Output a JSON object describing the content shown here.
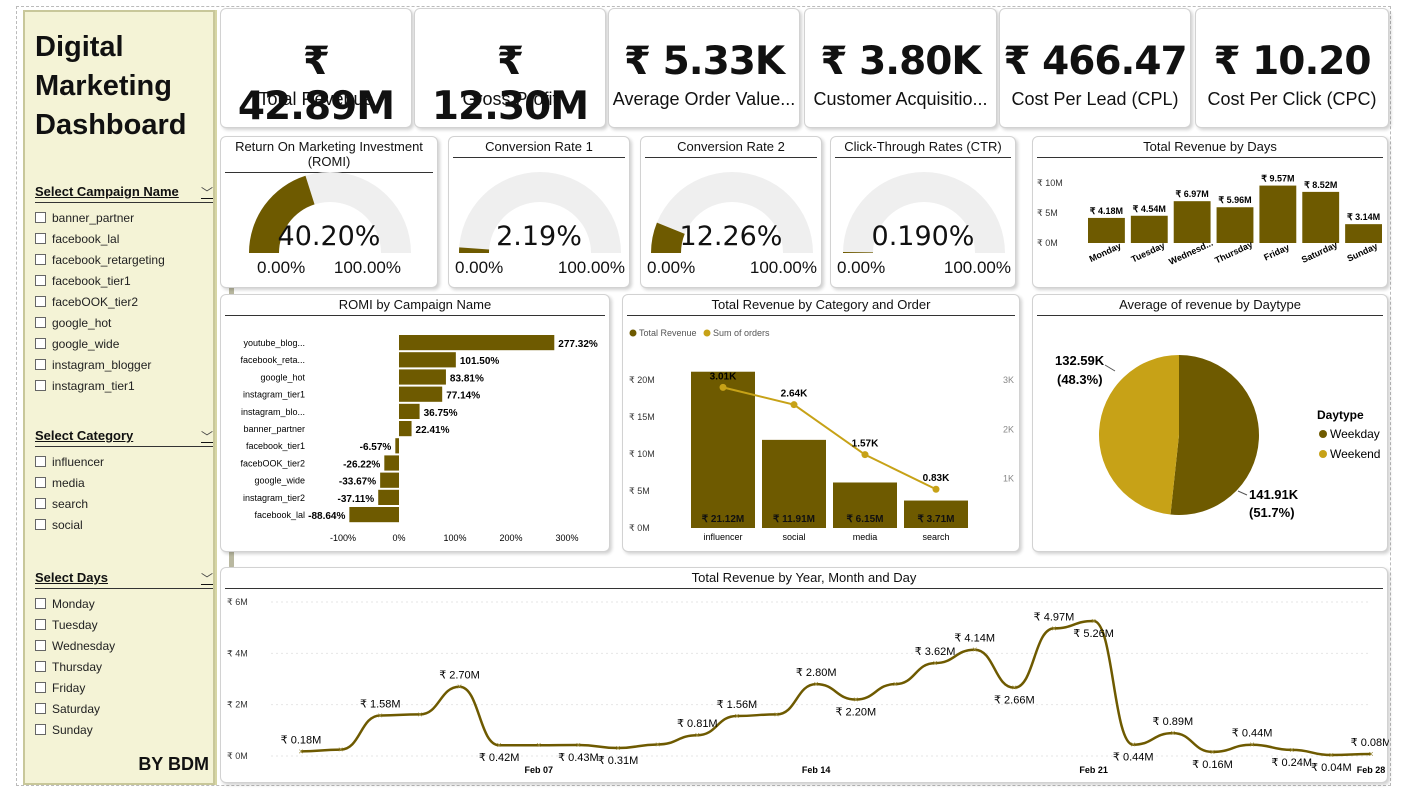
{
  "colors": {
    "dark": "#6e5a00",
    "gold": "#c7a217",
    "track": "#efefef",
    "sidebar_bg": "#f4f3d6"
  },
  "sidebar": {
    "title": "Digital Marketing Dashboard",
    "campaign": {
      "label": "Select Campaign Name",
      "options": [
        "banner_partner",
        "facebook_lal",
        "facebook_retargeting",
        "facebook_tier1",
        "facebOOK_tier2",
        "google_hot",
        "google_wide",
        "instagram_blogger",
        "instagram_tier1"
      ]
    },
    "category": {
      "label": "Select Category",
      "options": [
        "influencer",
        "media",
        "search",
        "social"
      ]
    },
    "days": {
      "label": "Select Days",
      "options": [
        "Monday",
        "Tuesday",
        "Wednesday",
        "Thursday",
        "Friday",
        "Saturday",
        "Sunday"
      ]
    },
    "byline": "BY BDM"
  },
  "kpis": [
    {
      "value": "₹ 42.89M",
      "label": "Total Revenue"
    },
    {
      "value": "₹ 12.30M",
      "label": "Gross Profit"
    },
    {
      "value": "₹ 5.33K",
      "label": "Average Order Value..."
    },
    {
      "value": "₹ 3.80K",
      "label": "Customer Acquisitio..."
    },
    {
      "value": "₹ 466.47",
      "label": "Cost Per Lead (CPL)"
    },
    {
      "value": "₹ 10.20",
      "label": "Cost Per Click (CPC)"
    }
  ],
  "gauges": [
    {
      "title": "Return On Marketing Investment (ROMI)",
      "value": "40.20%",
      "fraction": 0.402,
      "min": "0.00%",
      "max": "100.00%"
    },
    {
      "title": "Conversion Rate 1",
      "value": "2.19%",
      "fraction": 0.0219,
      "min": "0.00%",
      "max": "100.00%"
    },
    {
      "title": "Conversion Rate 2",
      "value": "12.26%",
      "fraction": 0.1226,
      "min": "0.00%",
      "max": "100.00%"
    },
    {
      "title": "Click-Through Rates (CTR)",
      "value": "0.190%",
      "fraction": 0.0019,
      "min": "0.00%",
      "max": "100.00%"
    }
  ],
  "chart_data": [
    {
      "type": "bar",
      "title": "Total Revenue by Days",
      "categories": [
        "Monday",
        "Tuesday",
        "Wednesd...",
        "Thursday",
        "Friday",
        "Saturday",
        "Sunday"
      ],
      "values": [
        4.18,
        4.54,
        6.97,
        5.96,
        9.57,
        8.52,
        3.14
      ],
      "labels": [
        "₹ 4.18M",
        "₹ 4.54M",
        "₹ 6.97M",
        "₹ 5.96M",
        "₹ 9.57M",
        "₹ 8.52M",
        "₹ 3.14M"
      ],
      "yticks": [
        "₹ 10M",
        "₹ 5M",
        "₹ 0M"
      ],
      "ylim": [
        0,
        10
      ]
    },
    {
      "type": "bar",
      "title": "ROMI by Campaign Name",
      "categories": [
        "youtube_blog...",
        "facebook_reta...",
        "google_hot",
        "instagram_tier1",
        "instagram_blo...",
        "banner_partner",
        "facebook_tier1",
        "facebOOK_tier2",
        "google_wide",
        "instagram_tier2",
        "facebook_lal"
      ],
      "values": [
        277.32,
        101.5,
        83.81,
        77.14,
        36.75,
        22.41,
        -6.57,
        -26.22,
        -33.67,
        -37.11,
        -88.64
      ],
      "labels": [
        "277.32%",
        "101.50%",
        "83.81%",
        "77.14%",
        "36.75%",
        "22.41%",
        "-6.57%",
        "-26.22%",
        "-33.67%",
        "-37.11%",
        "-88.64%"
      ],
      "xticks": [
        "-100%",
        "0%",
        "100%",
        "200%",
        "300%"
      ],
      "xlim": [
        -100,
        300
      ]
    },
    {
      "type": "bar",
      "title": "Total Revenue by Category and Order",
      "legend": [
        "Total Revenue",
        "Sum of orders"
      ],
      "categories": [
        "influencer",
        "social",
        "media",
        "search"
      ],
      "revenue": [
        21.12,
        11.91,
        6.15,
        3.71
      ],
      "revenue_labels": [
        "₹ 21.12M",
        "₹ 11.91M",
        "₹ 6.15M",
        "₹ 3.71M"
      ],
      "orders": [
        3010,
        2640,
        1570,
        830
      ],
      "order_labels": [
        "3.01K",
        "2.64K",
        "1.57K",
        "0.83K"
      ],
      "yticks": [
        "₹ 20M",
        "₹ 15M",
        "₹ 10M",
        "₹ 5M",
        "₹ 0M"
      ],
      "y2ticks": [
        "3K",
        "2K",
        "1K"
      ],
      "ylim": [
        0,
        20
      ],
      "y2lim": [
        0,
        3000
      ]
    },
    {
      "type": "pie",
      "title": "Average of revenue by Daytype",
      "legend_title": "Daytype",
      "categories": [
        "Weekday",
        "Weekend"
      ],
      "values": [
        141.91,
        132.59
      ],
      "labels": [
        "141.91K",
        "132.59K"
      ],
      "percents": [
        "(51.7%)",
        "(48.3%)"
      ]
    },
    {
      "type": "line",
      "title": "Total Revenue by Year, Month and Day",
      "yticks": [
        "₹ 6M",
        "₹ 4M",
        "₹ 2M",
        "₹ 0M"
      ],
      "xticks": [
        "Feb 07",
        "Feb 14",
        "Feb 21",
        "Feb 28"
      ],
      "ylim": [
        0,
        6
      ],
      "x": [
        "Feb 01",
        "Feb 02",
        "Feb 03",
        "Feb 04",
        "Feb 05",
        "Feb 06",
        "Feb 07",
        "Feb 08",
        "Feb 09",
        "Feb 10",
        "Feb 11",
        "Feb 12",
        "Feb 13",
        "Feb 14",
        "Feb 15",
        "Feb 16",
        "Feb 17",
        "Feb 18",
        "Feb 19",
        "Feb 20",
        "Feb 21",
        "Feb 22",
        "Feb 23",
        "Feb 24",
        "Feb 25",
        "Feb 26",
        "Feb 27",
        "Feb 28"
      ],
      "values": [
        0.18,
        0.25,
        1.58,
        1.62,
        2.7,
        0.42,
        0.42,
        0.43,
        0.31,
        0.45,
        0.81,
        1.56,
        1.62,
        2.8,
        2.2,
        2.8,
        3.62,
        4.14,
        2.66,
        4.97,
        5.26,
        0.44,
        0.89,
        0.16,
        0.44,
        0.24,
        0.04,
        0.08
      ],
      "point_labels": {
        "0": "₹ 0.18M",
        "2": "₹ 1.58M",
        "4": "₹ 2.70M",
        "5": "₹ 0.42M",
        "7": "₹ 0.43M",
        "8": "₹ 0.31M",
        "10": "₹ 0.81M",
        "11": "₹ 1.56M",
        "13": "₹ 2.80M",
        "14": "₹ 2.20M",
        "16": "₹ 3.62M",
        "17": "₹ 4.14M",
        "18": "₹ 2.66M",
        "19": "₹ 4.97M",
        "20": "₹ 5.26M",
        "21": "₹ 0.44M",
        "22": "₹ 0.89M",
        "23": "₹ 0.16M",
        "24": "₹ 0.44M",
        "25": "₹ 0.24M",
        "26": "₹ 0.04M",
        "27": "₹ 0.08M"
      }
    }
  ]
}
